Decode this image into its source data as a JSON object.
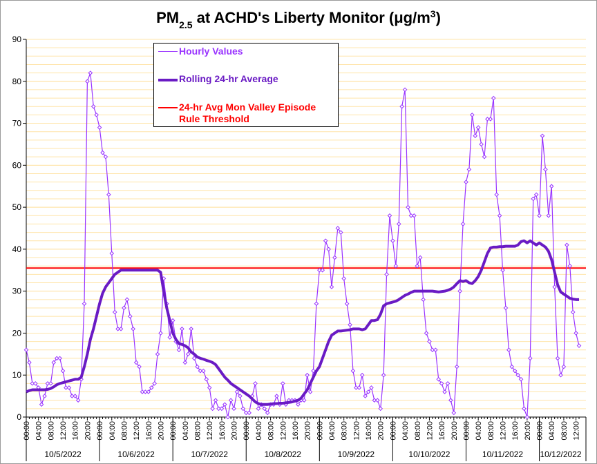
{
  "chart_data": {
    "type": "line",
    "title": [
      {
        "text": "PM"
      },
      {
        "text": "2.5",
        "style": "sub"
      },
      {
        "text": " at ACHD's Liberty Monitor (μg/m"
      },
      {
        "text": "3",
        "style": "sup"
      },
      {
        "text": ")"
      }
    ],
    "categories": [
      "00:00",
      null,
      null,
      null,
      "04:00",
      null,
      null,
      null,
      "08:00",
      null,
      null,
      null,
      "12:00",
      null,
      null,
      null,
      "16:00",
      null,
      null,
      null,
      "20:00",
      null,
      null,
      null,
      "00:00",
      null,
      null,
      null,
      "04:00",
      null,
      null,
      null,
      "08:00",
      null,
      null,
      null,
      "12:00",
      null,
      null,
      null,
      "16:00",
      null,
      null,
      null,
      "20:00",
      null,
      null,
      null,
      "00:00",
      null,
      null,
      null,
      "04:00",
      null,
      null,
      null,
      "08:00",
      null,
      null,
      null,
      "12:00",
      null,
      null,
      null,
      "16:00",
      null,
      null,
      null,
      "20:00",
      null,
      null,
      null,
      "00:00",
      null,
      null,
      null,
      "04:00",
      null,
      null,
      null,
      "08:00",
      null,
      null,
      null,
      "12:00",
      null,
      null,
      null,
      "16:00",
      null,
      null,
      null,
      "20:00",
      null,
      null,
      null,
      "00:00",
      null,
      null,
      null,
      "04:00",
      null,
      null,
      null,
      "08:00",
      null,
      null,
      null,
      "12:00",
      null,
      null,
      null,
      "16:00",
      null,
      null,
      null,
      "20:00",
      null,
      null,
      null,
      "00:00",
      null,
      null,
      null,
      "04:00",
      null,
      null,
      null,
      "08:00",
      null,
      null,
      null,
      "12:00",
      null,
      null,
      null,
      "16:00",
      null,
      null,
      null,
      "20:00",
      null,
      null,
      null,
      "00:00",
      null,
      null,
      null,
      "04:00",
      null,
      null,
      null,
      "08:00",
      null,
      null,
      null,
      "12:00",
      null,
      null,
      null,
      "16:00",
      null,
      null,
      null,
      "20:00",
      null,
      null,
      null,
      "00:00",
      null,
      null,
      null,
      "04:00",
      null,
      null,
      null,
      "08:00",
      null,
      null,
      null,
      "12:00",
      null
    ],
    "x_groups": [
      "10/5/2022",
      "10/6/2022",
      "10/7/2022",
      "10/8/2022",
      "10/9/2022",
      "10/10/2022",
      "10/11/2022",
      "10/12/2022"
    ],
    "series": [
      {
        "name": "Hourly Values",
        "color": "#9933ff",
        "values": [
          16,
          13,
          8,
          8,
          7,
          3,
          5,
          8,
          8,
          13,
          14,
          14,
          11,
          7,
          7,
          5,
          5,
          4,
          9,
          27,
          80,
          82,
          74,
          72,
          69,
          63,
          62,
          53,
          39,
          25,
          21,
          21,
          26,
          28,
          24,
          21,
          13,
          12,
          6,
          6,
          6,
          7,
          8,
          15,
          20,
          33,
          27,
          19,
          23,
          18,
          16,
          21,
          13,
          15,
          21,
          14,
          12,
          11,
          11,
          9,
          7,
          2,
          4,
          2,
          2,
          3,
          0,
          4,
          2,
          6,
          5,
          2,
          1,
          1,
          5,
          8,
          2,
          3,
          2,
          1,
          3,
          3,
          5,
          3,
          8,
          3,
          4,
          4,
          4,
          3,
          4,
          4,
          10,
          6,
          11,
          27,
          35,
          35,
          42,
          40,
          31,
          38,
          45,
          44,
          33,
          27,
          22,
          11,
          7,
          7,
          10,
          5,
          6,
          7,
          4,
          4,
          2,
          10,
          34,
          48,
          42,
          36,
          46,
          74,
          78,
          50,
          48,
          48,
          36,
          38,
          28,
          20,
          18,
          16,
          16,
          9,
          8,
          6,
          8,
          4,
          1,
          12,
          30,
          46,
          56,
          59,
          72,
          67,
          69,
          65,
          62,
          71,
          71,
          76,
          53,
          48,
          35,
          26,
          16,
          12,
          11,
          10,
          9,
          2,
          0,
          14,
          52,
          53,
          48,
          67,
          59,
          48,
          55,
          31,
          14,
          10,
          12,
          41,
          36,
          25,
          20,
          17
        ]
      },
      {
        "name": "Rolling 24-hr Average",
        "color": "#6a1bc4",
        "values": [
          6,
          6.3,
          6.5,
          6.5,
          6.5,
          6.5,
          6.5,
          6.6,
          6.8,
          7.2,
          7.7,
          8,
          8.2,
          8.4,
          8.6,
          8.8,
          9,
          9,
          9.5,
          12,
          15,
          18.5,
          21,
          24,
          27,
          29.5,
          31,
          32,
          33,
          34,
          34.5,
          35,
          35,
          35,
          35,
          35,
          35,
          35,
          35,
          35,
          35,
          35,
          35,
          35,
          34.5,
          30,
          26,
          23,
          20,
          18.5,
          17.5,
          17.3,
          17,
          16.5,
          15.5,
          15,
          14.3,
          14,
          13.8,
          13.5,
          13.3,
          13,
          12.5,
          11.5,
          10.5,
          9.5,
          8.8,
          8,
          7.5,
          7,
          6.5,
          6,
          5.5,
          5,
          4.3,
          3.6,
          3.2,
          3,
          3,
          3,
          3.1,
          3.2,
          3.2,
          3.3,
          3.3,
          3.4,
          3.5,
          3.6,
          3.8,
          4,
          4.5,
          5.5,
          6.5,
          8,
          9.5,
          11,
          12,
          14,
          16,
          18,
          19.5,
          20,
          20.5,
          20.5,
          20.6,
          20.7,
          20.8,
          21,
          21,
          21,
          20.8,
          21,
          22,
          23,
          23,
          23.2,
          24.5,
          26.5,
          27,
          27.2,
          27.4,
          27.6,
          28,
          28.5,
          29,
          29.3,
          29.7,
          30,
          30,
          30,
          30,
          30,
          30,
          30,
          29.9,
          29.8,
          29.9,
          30,
          30.2,
          30.5,
          31,
          31.8,
          32.5,
          32.3,
          32.5,
          32,
          31.8,
          32.5,
          33.5,
          35,
          37,
          39,
          40.3,
          40.5,
          40.5,
          40.6,
          40.6,
          40.7,
          40.7,
          40.7,
          40.7,
          41,
          41.8,
          42,
          41.5,
          42,
          41.5,
          41,
          41.5,
          41,
          40.5,
          39.5,
          37.5,
          34.5,
          31.5,
          29.8,
          29.3,
          28.8,
          28.3,
          28.1,
          28,
          28
        ]
      }
    ],
    "threshold": {
      "name": "24-hr Avg Mon Valley Episode Rule Threshold",
      "color": "#ff0000",
      "value": 35.5
    },
    "ylim": [
      0,
      90
    ],
    "yticks": [
      0,
      10,
      20,
      30,
      40,
      50,
      60,
      70,
      80,
      90
    ],
    "minor_grid_step": 2,
    "grid_color": "#ffe4a8",
    "legend": "top-left"
  }
}
